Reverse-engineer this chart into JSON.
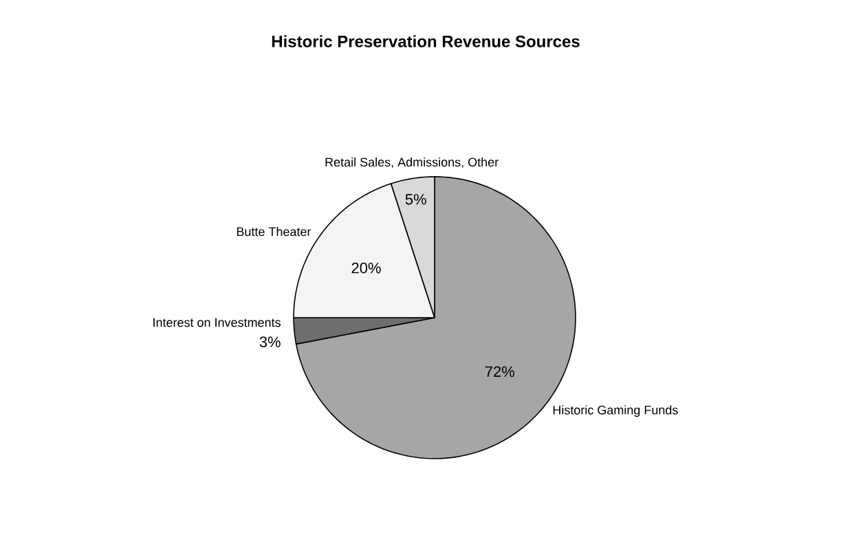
{
  "chart_data": {
    "type": "pie",
    "title": "Historic Preservation Revenue Sources",
    "categories": [
      "Historic Gaming Funds",
      "Interest on Investments",
      "Butte Theater",
      "Retail Sales, Admissions, Other"
    ],
    "values": [
      72,
      3,
      20,
      5
    ],
    "colors": [
      "#a6a6a6",
      "#6e6e6e",
      "#f4f4f4",
      "#d9d9d9"
    ],
    "value_labels": [
      "72%",
      "3%",
      "20%",
      "5%"
    ]
  }
}
